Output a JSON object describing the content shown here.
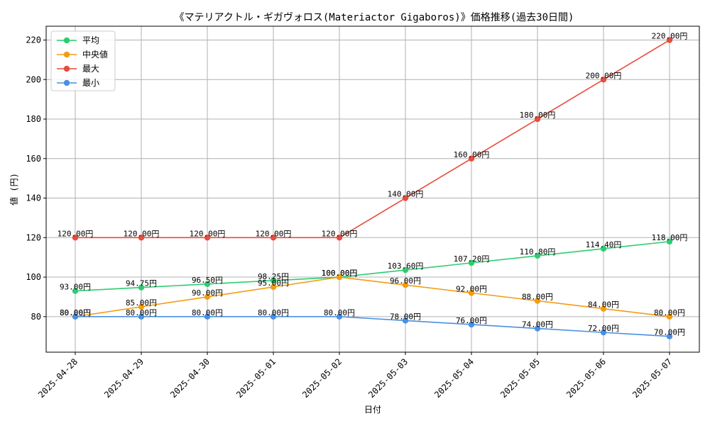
{
  "chart_data": {
    "type": "line",
    "title": "《マテリアクトル・ギガヴォロス(Materiactor Gigaboros)》価格推移(過去30日間)",
    "xlabel": "日付",
    "ylabel": "値 (円)",
    "categories": [
      "2025-04-28",
      "2025-04-29",
      "2025-04-30",
      "2025-05-01",
      "2025-05-02",
      "2025-05-03",
      "2025-05-04",
      "2025-05-05",
      "2025-05-06",
      "2025-05-07"
    ],
    "ylim": [
      62,
      227
    ],
    "yticks": [
      80,
      100,
      120,
      140,
      160,
      180,
      200,
      220
    ],
    "grid": true,
    "legend_position": "top-left",
    "value_suffix": "円",
    "series": [
      {
        "name": "平均",
        "color": "#2ecc71",
        "values": [
          93.0,
          94.75,
          96.5,
          98.25,
          100.0,
          103.6,
          107.2,
          110.8,
          114.4,
          118.0
        ],
        "labels": [
          "93.00円",
          "94.75円",
          "96.50円",
          "98.25円",
          "100.00円",
          "103.60円",
          "107.20円",
          "110.80円",
          "114.40円",
          "118.00円"
        ]
      },
      {
        "name": "中央値",
        "color": "#f39c12",
        "values": [
          80,
          85,
          90,
          95,
          100,
          96,
          92,
          88,
          84,
          80
        ],
        "labels": [
          "80.00円",
          "85.00円",
          "90.00円",
          "95.00円",
          "100.00円",
          "96.00円",
          "92.00円",
          "88.00円",
          "84.00円",
          "80.00円"
        ]
      },
      {
        "name": "最大",
        "color": "#e74c3c",
        "values": [
          120,
          120,
          120,
          120,
          120,
          140,
          160,
          180,
          200,
          220
        ],
        "labels": [
          "120.00円",
          "120.00円",
          "120.00円",
          "120.00円",
          "120.00円",
          "140.00円",
          "160.00円",
          "180.00円",
          "200.00円",
          "220.00円"
        ]
      },
      {
        "name": "最小",
        "color": "#4a90e2",
        "values": [
          80,
          80,
          80,
          80,
          80,
          78,
          76,
          74,
          72,
          70
        ],
        "labels": [
          "80.00円",
          "80.00円",
          "80.00円",
          "80.00円",
          "80.00円",
          "78.00円",
          "76.00円",
          "74.00円",
          "72.00円",
          "70.00円"
        ]
      }
    ]
  }
}
